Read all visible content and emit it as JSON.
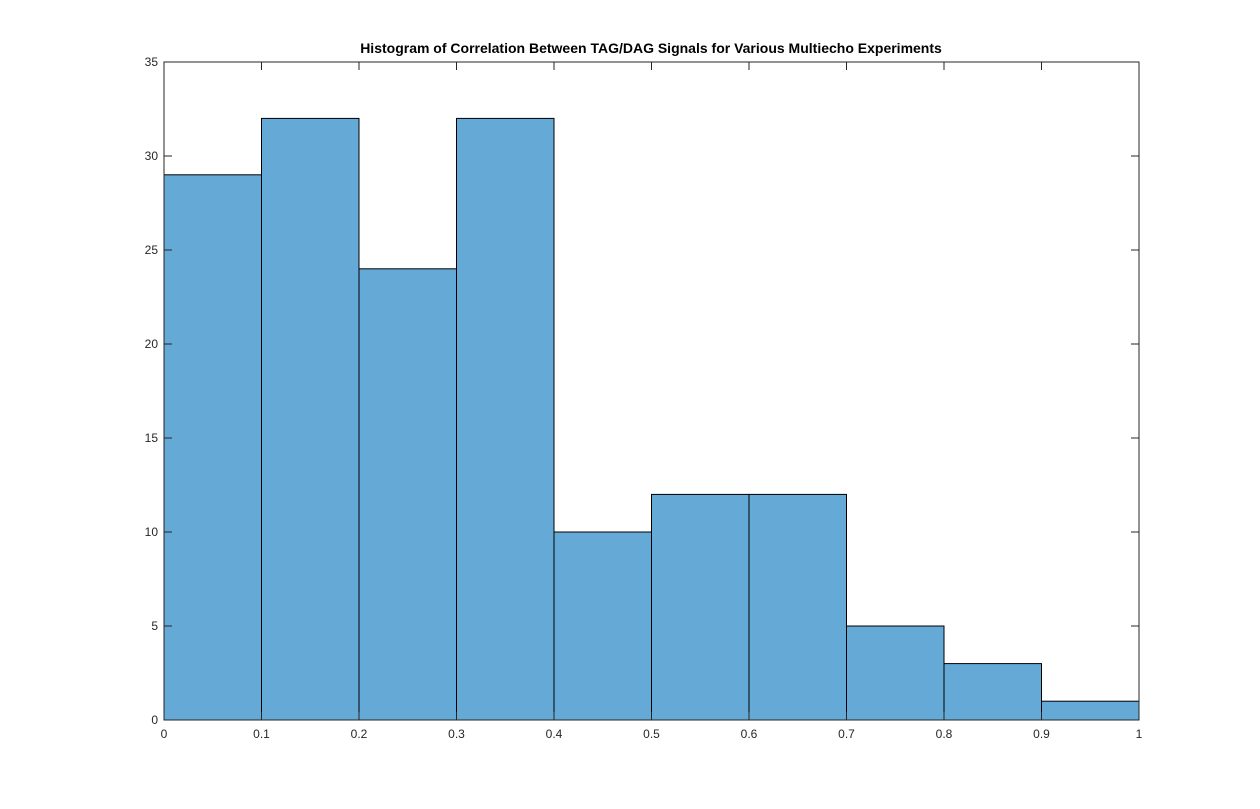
{
  "chart_data": {
    "type": "bar",
    "title": "Histogram of Correlation Between TAG/DAG Signals for Various Multiecho Experiments",
    "xlabel": "",
    "ylabel": "",
    "bin_edges": [
      0,
      0.1,
      0.2,
      0.3,
      0.4,
      0.5,
      0.6,
      0.7,
      0.8,
      0.9,
      1
    ],
    "values": [
      29,
      32,
      24,
      32,
      10,
      12,
      12,
      5,
      3,
      1
    ],
    "xlim": [
      0,
      1
    ],
    "ylim": [
      0,
      35
    ],
    "x_ticks": [
      "0",
      "0.1",
      "0.2",
      "0.3",
      "0.4",
      "0.5",
      "0.6",
      "0.7",
      "0.8",
      "0.9",
      "1"
    ],
    "y_ticks": [
      "0",
      "5",
      "10",
      "15",
      "20",
      "25",
      "30",
      "35"
    ],
    "grid": false,
    "legend": "none",
    "bar_color": "#65A9D7",
    "bar_edge_color": "#000000"
  }
}
